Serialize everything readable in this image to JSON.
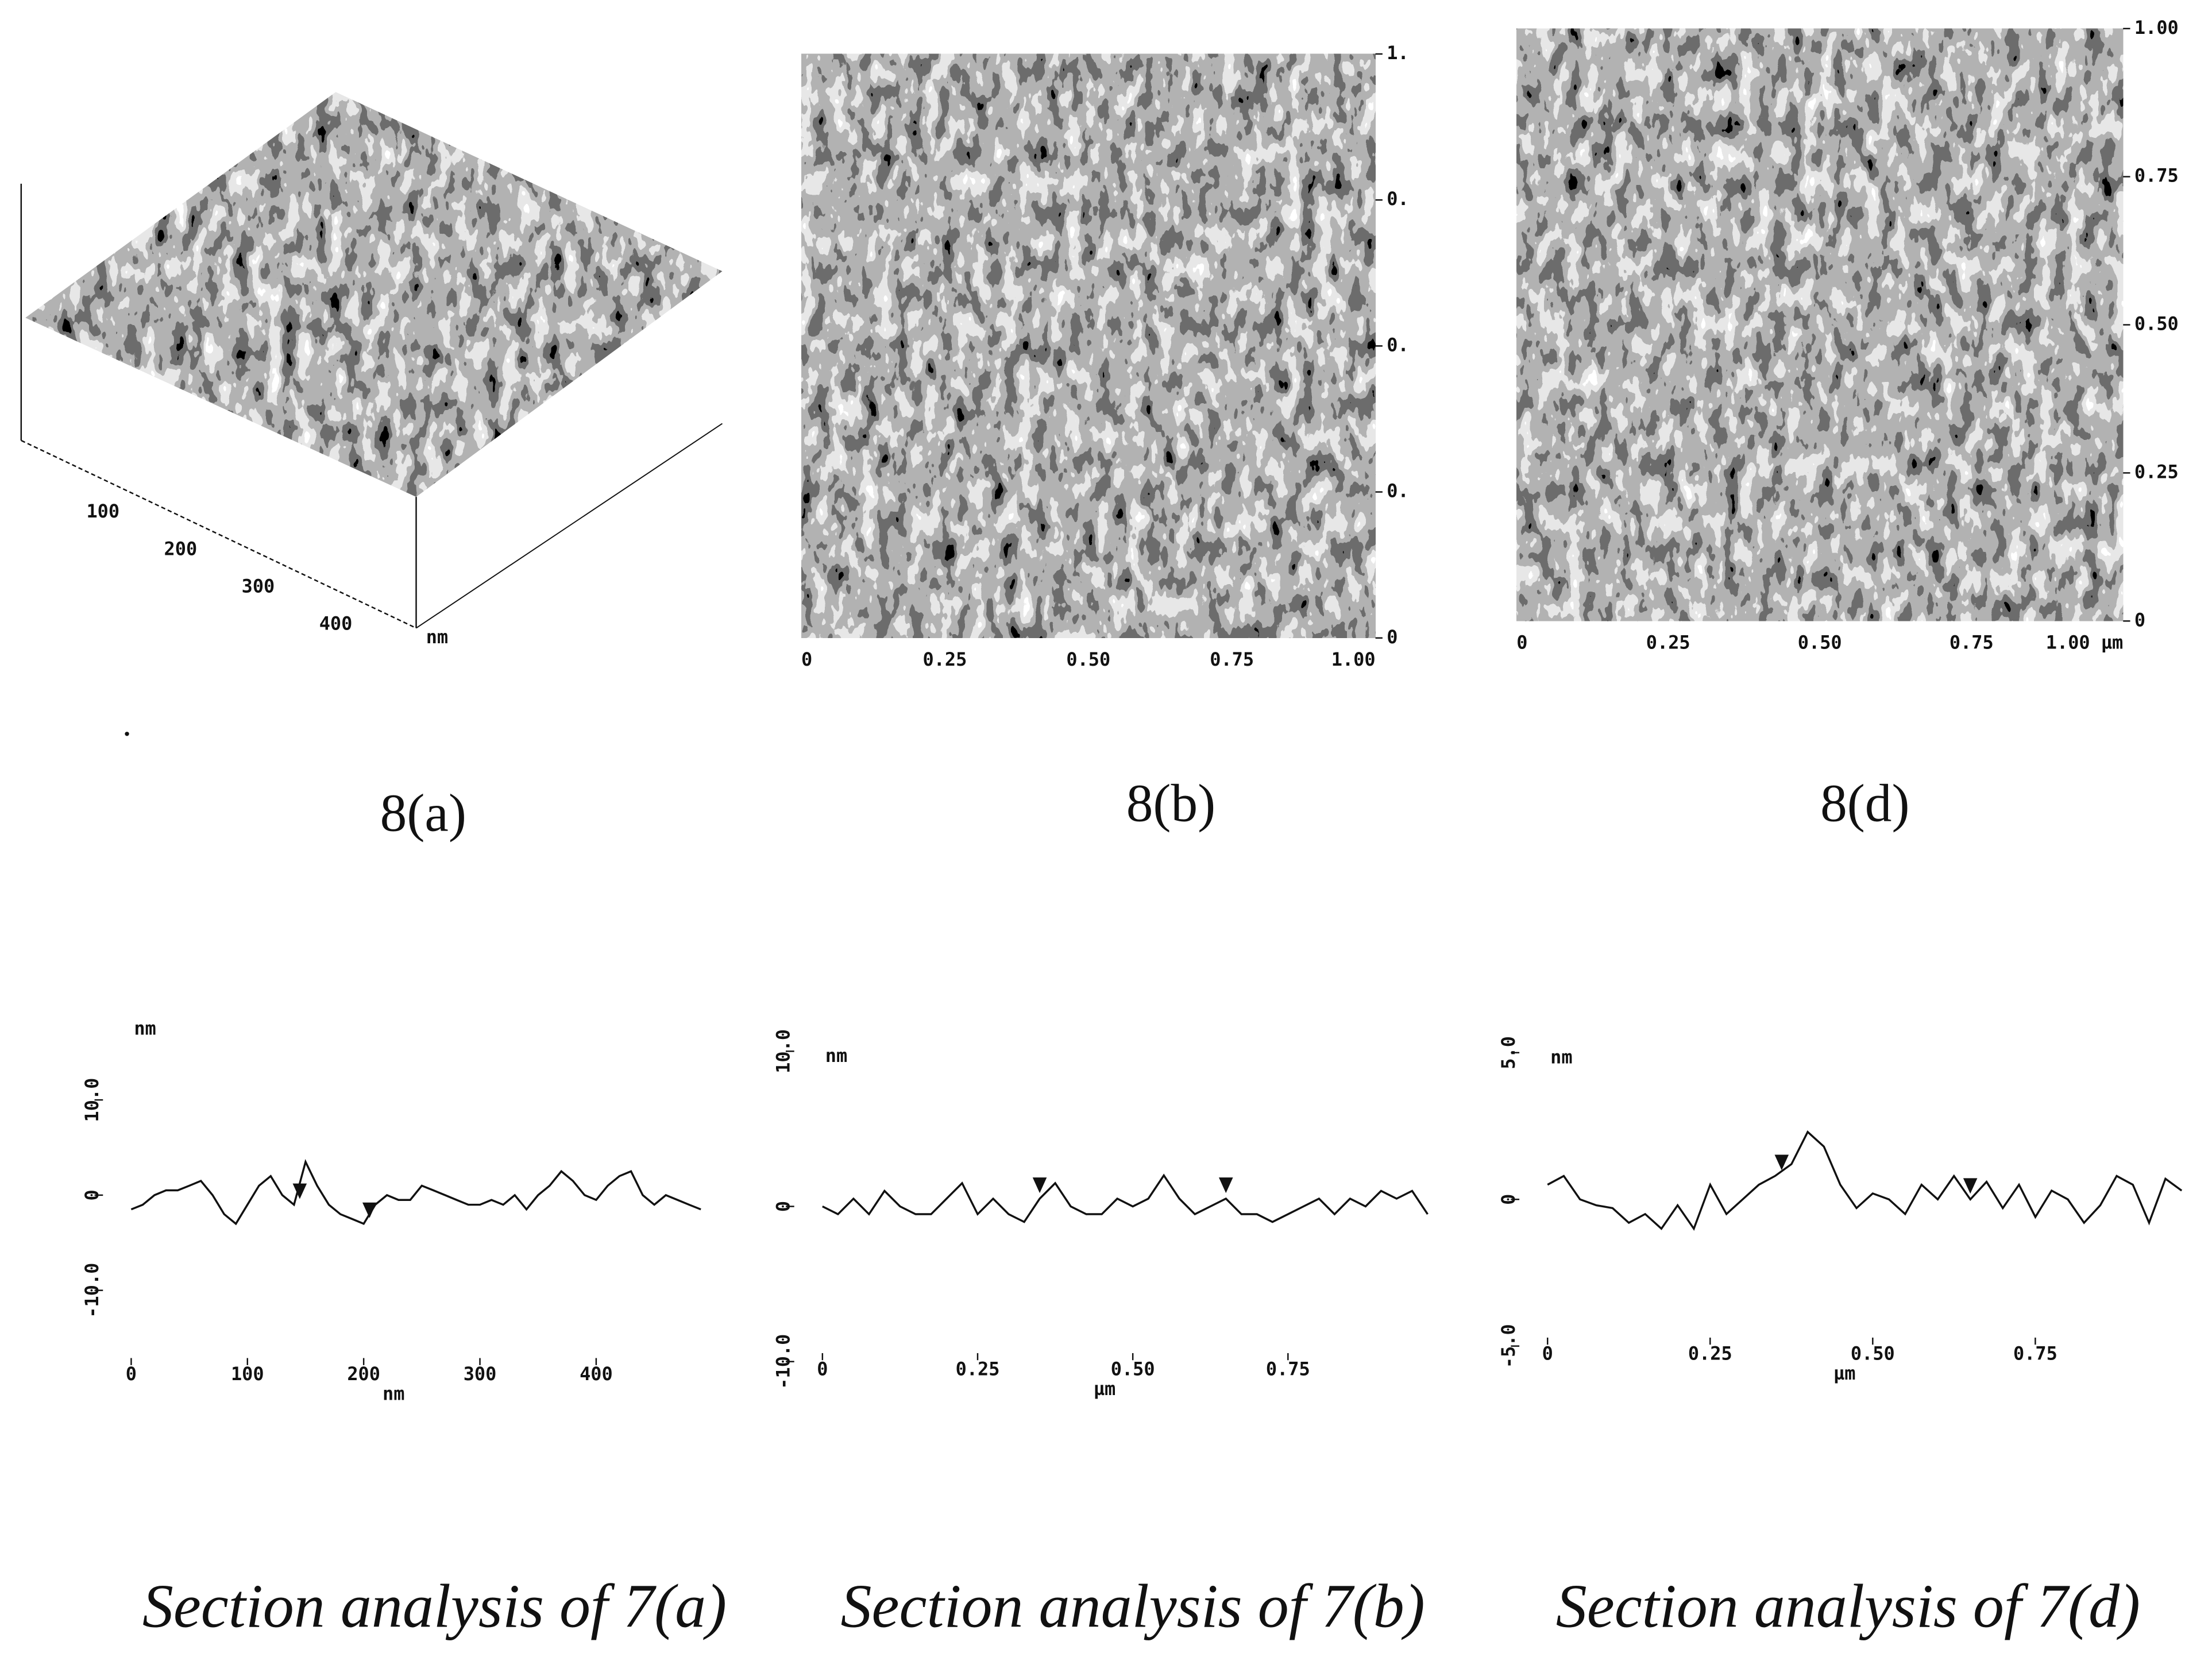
{
  "images": [
    {
      "caption": "8(a)",
      "x_labels": [
        "100",
        "200",
        "300",
        "400"
      ],
      "x_unit": "nm"
    },
    {
      "caption": "8(b)",
      "y_labels": [
        "1.",
        "0.",
        "0.",
        "0.",
        "0"
      ],
      "x_labels": [
        "0",
        "0.25",
        "0.50",
        "0.75",
        "1.00"
      ]
    },
    {
      "caption": "8(d)",
      "y_labels": [
        "1.00",
        "0.75",
        "0.50",
        "0.25",
        "0"
      ],
      "x_labels": [
        "0",
        "0.25",
        "0.50",
        "0.75",
        "1.00 µm"
      ]
    }
  ],
  "chart_data": [
    {
      "type": "line",
      "title": "Section analysis of 7(a)",
      "y_unit": "nm",
      "x_unit": "nm",
      "color": "#111111",
      "x": [
        0,
        10,
        20,
        30,
        40,
        50,
        60,
        70,
        80,
        90,
        100,
        110,
        120,
        130,
        140,
        150,
        160,
        170,
        180,
        190,
        200,
        210,
        220,
        230,
        240,
        250,
        260,
        270,
        280,
        290,
        300,
        310,
        320,
        330,
        340,
        350,
        360,
        370,
        380,
        390,
        400,
        410,
        420,
        430,
        440,
        450,
        460,
        470,
        480,
        490
      ],
      "values": [
        -1.5,
        -1,
        0,
        0.5,
        0.5,
        1,
        1.5,
        0,
        -2,
        -3,
        -1,
        1,
        2,
        0,
        -1,
        3.5,
        1,
        -1,
        -2,
        -2.5,
        -3,
        -1,
        0,
        -0.5,
        -0.5,
        1,
        0.5,
        0,
        -0.5,
        -1,
        -1,
        -0.5,
        -1,
        0,
        -1.5,
        0,
        1,
        2.5,
        1.5,
        0,
        -0.5,
        1,
        2,
        2.5,
        0,
        -1,
        0,
        -0.5,
        -1,
        -1.5
      ],
      "cursors": [
        145,
        205
      ],
      "xlim": [
        0,
        500
      ],
      "xticks": [
        0,
        100,
        200,
        300,
        400
      ],
      "ylim": [
        -18,
        18
      ],
      "yticks": [
        {
          "value": 10,
          "label": "10.0"
        },
        0,
        {
          "value": -10,
          "label": "-10.0"
        }
      ]
    },
    {
      "type": "line",
      "title": "Section analysis of 7(b)",
      "y_unit": "nm",
      "x_unit": "µm",
      "color": "#111111",
      "x": [
        0,
        0.025,
        0.05,
        0.075,
        0.1,
        0.125,
        0.15,
        0.175,
        0.2,
        0.225,
        0.25,
        0.275,
        0.3,
        0.325,
        0.35,
        0.375,
        0.4,
        0.425,
        0.45,
        0.475,
        0.5,
        0.525,
        0.55,
        0.575,
        0.6,
        0.625,
        0.65,
        0.675,
        0.7,
        0.725,
        0.75,
        0.775,
        0.8,
        0.825,
        0.85,
        0.875,
        0.9,
        0.925,
        0.95,
        0.975
      ],
      "values": [
        0,
        -0.5,
        0.5,
        -0.5,
        1,
        0,
        -0.5,
        -0.5,
        0.5,
        1.5,
        -0.5,
        0.5,
        -0.5,
        -1,
        0.5,
        1.5,
        0,
        -0.5,
        -0.5,
        0.5,
        0,
        0.5,
        2,
        0.5,
        -0.5,
        0,
        0.5,
        -0.5,
        -0.5,
        -1,
        -0.5,
        0,
        0.5,
        -0.5,
        0.5,
        0,
        1,
        0.5,
        1,
        -0.5
      ],
      "cursors": [
        0.35,
        0.65
      ],
      "xlim": [
        0,
        1
      ],
      "xticks": [
        {
          "value": 0,
          "label": "0"
        },
        0.25,
        {
          "value": 0.5,
          "label": "0.50"
        },
        0.75
      ],
      "ylim": [
        -10,
        10
      ],
      "yticks": [
        {
          "value": 10,
          "label": "10.0"
        },
        0,
        {
          "value": -10,
          "label": "-10.0"
        }
      ]
    },
    {
      "type": "line",
      "title": "Section analysis of 7(d)",
      "y_unit": "nm",
      "x_unit": "µm",
      "color": "#111111",
      "x": [
        0,
        0.025,
        0.05,
        0.075,
        0.1,
        0.125,
        0.15,
        0.175,
        0.2,
        0.225,
        0.25,
        0.275,
        0.3,
        0.325,
        0.35,
        0.375,
        0.4,
        0.425,
        0.45,
        0.475,
        0.5,
        0.525,
        0.55,
        0.575,
        0.6,
        0.625,
        0.65,
        0.675,
        0.7,
        0.725,
        0.75,
        0.775,
        0.8,
        0.825,
        0.85,
        0.875,
        0.9,
        0.925,
        0.95,
        0.975
      ],
      "values": [
        0.5,
        0.8,
        0,
        -0.2,
        -0.3,
        -0.8,
        -0.5,
        -1,
        -0.2,
        -1,
        0.5,
        -0.5,
        0,
        0.5,
        0.8,
        1.2,
        2.3,
        1.8,
        0.5,
        -0.3,
        0.2,
        0,
        -0.5,
        0.5,
        0,
        0.8,
        0,
        0.6,
        -0.3,
        0.5,
        -0.6,
        0.3,
        0,
        -0.8,
        -0.2,
        0.8,
        0.5,
        -0.8,
        0.7,
        0.3
      ],
      "cursors": [
        0.36,
        0.65
      ],
      "xlim": [
        0,
        1
      ],
      "xticks": [
        {
          "value": 0,
          "label": "0"
        },
        0.25,
        {
          "value": 0.5,
          "label": "0.50"
        },
        0.75
      ],
      "ylim": [
        -5,
        5
      ],
      "yticks": [
        {
          "value": 5,
          "label": "5.0"
        },
        0,
        {
          "value": -5,
          "label": "-5.0"
        }
      ]
    }
  ]
}
